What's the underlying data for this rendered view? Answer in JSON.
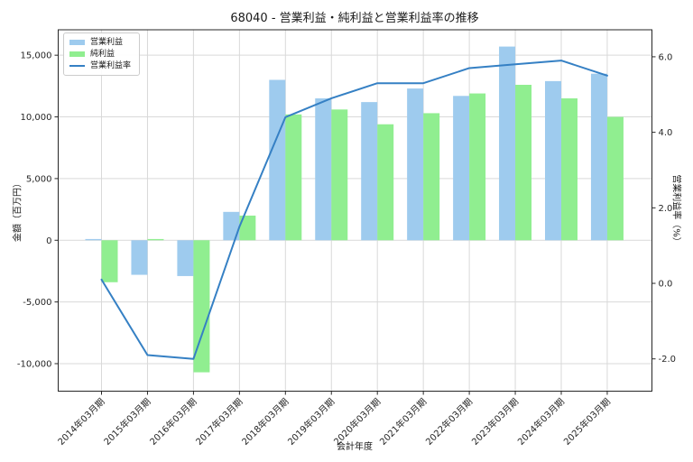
{
  "chart_data": {
    "type": "bar+line",
    "title": "68040 - 営業利益・純利益と営業利益率の推移",
    "xlabel": "会計年度",
    "ylabel_left": "金額（百万円）",
    "ylabel_right": "営業利益率（%）",
    "categories": [
      "2014年03月期",
      "2015年03月期",
      "2016年03月期",
      "2017年03月期",
      "2018年03月期",
      "2019年03月期",
      "2020年03月期",
      "2021年03月期",
      "2022年03月期",
      "2023年03月期",
      "2024年03月期",
      "2025年03月期"
    ],
    "series": [
      {
        "key": "operating-profit",
        "name": "営業利益",
        "type": "bar",
        "axis": "left",
        "color": "#9ecbee",
        "values": [
          100,
          -2800,
          -2900,
          2300,
          13000,
          11500,
          11200,
          12300,
          11700,
          15700,
          12900,
          13500
        ]
      },
      {
        "key": "net-profit",
        "name": "純利益",
        "type": "bar",
        "axis": "left",
        "color": "#90ee90",
        "values": [
          -3400,
          100,
          -10700,
          2000,
          10200,
          10600,
          9400,
          10300,
          11900,
          12600,
          11500,
          10000
        ]
      },
      {
        "key": "operating-margin",
        "name": "営業利益率",
        "type": "line",
        "axis": "right",
        "color": "#3580c4",
        "values": [
          0.1,
          -1.9,
          -2.0,
          1.5,
          4.4,
          4.9,
          5.3,
          5.3,
          5.7,
          5.8,
          5.9,
          5.5
        ]
      }
    ],
    "left_axis_ticks": [
      {
        "value": 15000,
        "label": "15,000"
      },
      {
        "value": 10000,
        "label": "10,000"
      },
      {
        "value": 5000,
        "label": "5,000"
      },
      {
        "value": 0,
        "label": "0"
      },
      {
        "value": -5000,
        "label": "-5,000"
      },
      {
        "value": -10000,
        "label": "-10,000"
      }
    ],
    "right_axis_ticks": [
      {
        "value": 6.0,
        "label": "6.0"
      },
      {
        "value": 4.0,
        "label": "4.0"
      },
      {
        "value": 2.0,
        "label": "2.0"
      },
      {
        "value": 0.0,
        "label": "0.0"
      },
      {
        "value": -2.0,
        "label": "-2.0"
      }
    ],
    "ylim_left": [
      -12230,
      17060
    ],
    "ylim_right": [
      -2.855,
      6.715
    ],
    "grid": true,
    "legend_position": "upper left",
    "colors": {
      "grid": "#d9d9d9",
      "spine": "#262626",
      "text": "#262626",
      "background": "#ffffff"
    }
  }
}
